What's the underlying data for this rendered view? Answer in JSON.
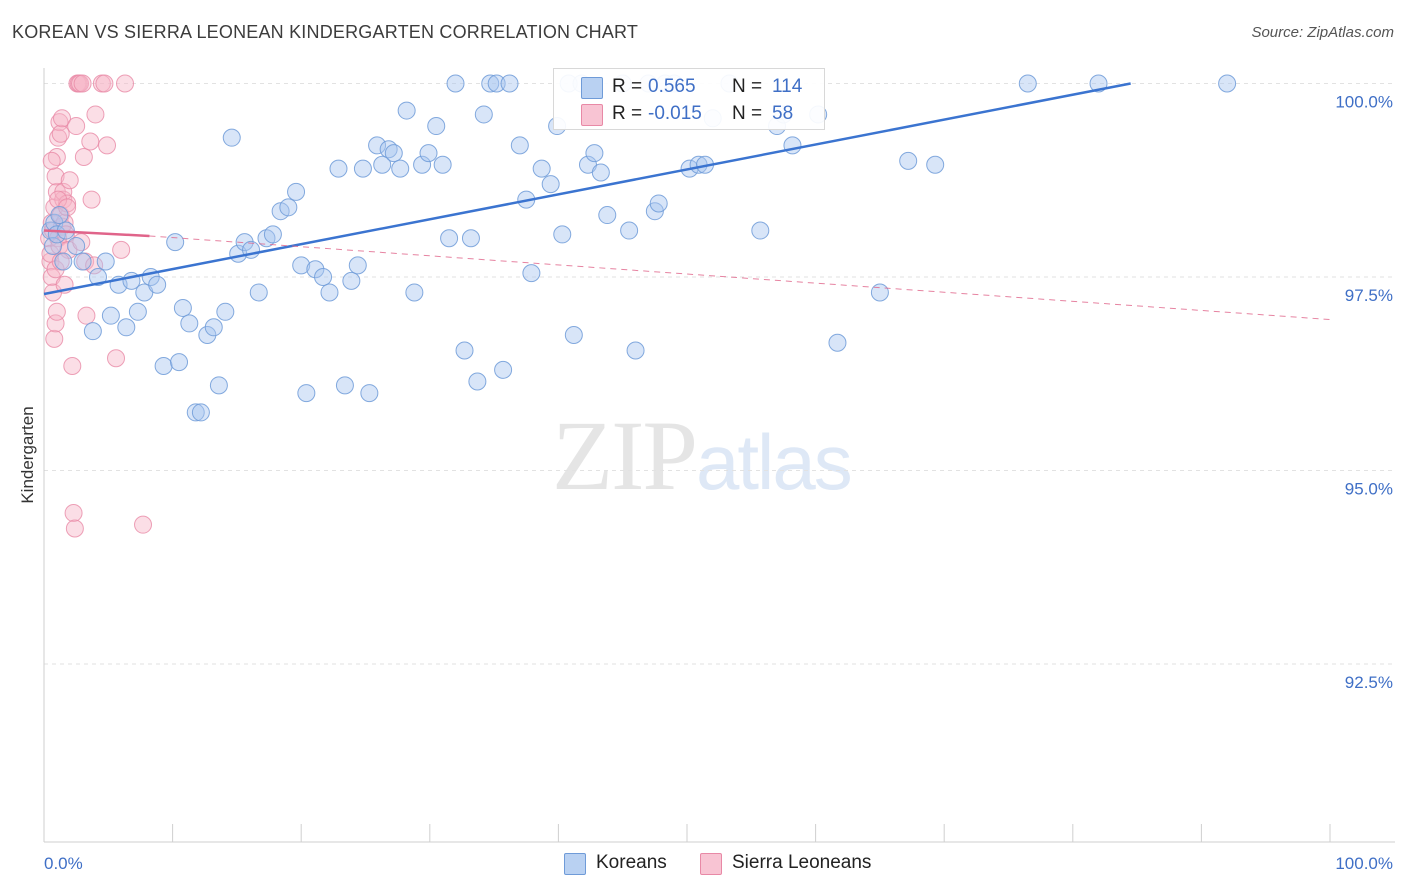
{
  "title": "KOREAN VS SIERRA LEONEAN KINDERGARTEN CORRELATION CHART",
  "source": "Source: ZipAtlas.com",
  "watermark": {
    "zip": "ZIP",
    "atlas": "atlas"
  },
  "legend": {
    "rows": [
      {
        "r_label": "R =",
        "r_value": "0.565",
        "n_label": "N =",
        "n_value": "114"
      },
      {
        "r_label": "R =",
        "r_value": "-0.015",
        "n_label": "N =",
        "n_value": "58"
      }
    ]
  },
  "colors": {
    "korean_fill": "#a9c6ef",
    "korean_stroke": "#6f9bd8",
    "korean_line": "#3b74d0",
    "sierra_fill": "#f6b6c8",
    "sierra_stroke": "#e889a6",
    "sierra_line": "#e0648a",
    "grid": "#e2e2e2",
    "tick_text": "#3f6fc6"
  },
  "chart_data": {
    "type": "scatter",
    "title": "KOREAN VS SIERRA LEONEAN KINDERGARTEN CORRELATION CHART",
    "xlabel": "",
    "ylabel": "Kindergarten",
    "xlim": [
      0,
      100
    ],
    "ylim": [
      90.2,
      100.2
    ],
    "x_tick_labels": [
      "0.0%",
      "100.0%"
    ],
    "y_ticks": [
      {
        "value": 100.0,
        "label": "100.0%"
      },
      {
        "value": 97.5,
        "label": "97.5%"
      },
      {
        "value": 95.0,
        "label": "95.0%"
      },
      {
        "value": 92.5,
        "label": "92.5%"
      }
    ],
    "series": [
      {
        "name": "Koreans",
        "r": 0.565,
        "n": 114,
        "trend": {
          "x": [
            0,
            84.5
          ],
          "y": [
            97.28,
            100.0
          ],
          "style": "solid"
        },
        "points": [
          [
            0.5,
            98.1
          ],
          [
            0.7,
            97.9
          ],
          [
            0.8,
            98.2
          ],
          [
            1.0,
            98.05
          ],
          [
            1.2,
            98.3
          ],
          [
            1.5,
            97.7
          ],
          [
            1.7,
            98.1
          ],
          [
            2.5,
            97.9
          ],
          [
            3.0,
            97.7
          ],
          [
            3.8,
            96.8
          ],
          [
            4.2,
            97.5
          ],
          [
            4.8,
            97.7
          ],
          [
            5.2,
            97.0
          ],
          [
            5.8,
            97.4
          ],
          [
            6.4,
            96.85
          ],
          [
            6.8,
            97.45
          ],
          [
            7.3,
            97.05
          ],
          [
            7.8,
            97.3
          ],
          [
            8.3,
            97.5
          ],
          [
            8.8,
            97.4
          ],
          [
            9.3,
            96.35
          ],
          [
            10.2,
            97.95
          ],
          [
            10.5,
            96.4
          ],
          [
            10.8,
            97.1
          ],
          [
            11.3,
            96.9
          ],
          [
            11.8,
            95.75
          ],
          [
            12.2,
            95.75
          ],
          [
            12.7,
            96.75
          ],
          [
            13.2,
            96.85
          ],
          [
            13.6,
            96.1
          ],
          [
            14.1,
            97.05
          ],
          [
            14.6,
            99.3
          ],
          [
            15.1,
            97.8
          ],
          [
            15.6,
            97.95
          ],
          [
            16.1,
            97.85
          ],
          [
            16.7,
            97.3
          ],
          [
            17.3,
            98.0
          ],
          [
            17.8,
            98.05
          ],
          [
            18.4,
            98.35
          ],
          [
            19.0,
            98.4
          ],
          [
            19.6,
            98.6
          ],
          [
            20.0,
            97.65
          ],
          [
            20.4,
            96.0
          ],
          [
            21.1,
            97.6
          ],
          [
            21.7,
            97.5
          ],
          [
            22.2,
            97.3
          ],
          [
            22.9,
            98.9
          ],
          [
            23.4,
            96.1
          ],
          [
            23.9,
            97.45
          ],
          [
            24.4,
            97.65
          ],
          [
            24.8,
            98.9
          ],
          [
            25.3,
            96.0
          ],
          [
            25.9,
            99.2
          ],
          [
            26.3,
            98.95
          ],
          [
            26.8,
            99.15
          ],
          [
            27.2,
            99.1
          ],
          [
            27.7,
            98.9
          ],
          [
            28.2,
            99.65
          ],
          [
            28.8,
            97.3
          ],
          [
            29.4,
            98.95
          ],
          [
            29.9,
            99.1
          ],
          [
            30.5,
            99.45
          ],
          [
            31.0,
            98.95
          ],
          [
            31.5,
            98.0
          ],
          [
            32.0,
            100.0
          ],
          [
            32.7,
            96.55
          ],
          [
            33.2,
            98.0
          ],
          [
            33.7,
            96.15
          ],
          [
            34.2,
            99.6
          ],
          [
            34.7,
            100.0
          ],
          [
            35.2,
            100.0
          ],
          [
            35.7,
            96.3
          ],
          [
            36.2,
            100.0
          ],
          [
            37.0,
            99.2
          ],
          [
            37.5,
            98.5
          ],
          [
            37.9,
            97.55
          ],
          [
            38.7,
            98.9
          ],
          [
            39.4,
            98.7
          ],
          [
            39.9,
            99.45
          ],
          [
            40.3,
            98.05
          ],
          [
            40.8,
            100.0
          ],
          [
            41.2,
            96.75
          ],
          [
            41.8,
            100.0
          ],
          [
            42.3,
            98.95
          ],
          [
            42.8,
            99.1
          ],
          [
            43.3,
            98.85
          ],
          [
            43.8,
            98.3
          ],
          [
            45.0,
            100.0
          ],
          [
            45.5,
            98.1
          ],
          [
            46.0,
            96.55
          ],
          [
            47.0,
            100.0
          ],
          [
            47.5,
            98.35
          ],
          [
            47.8,
            98.45
          ],
          [
            48.3,
            100.0
          ],
          [
            49.0,
            100.0
          ],
          [
            50.2,
            98.9
          ],
          [
            50.9,
            98.95
          ],
          [
            51.4,
            98.95
          ],
          [
            52.0,
            99.55
          ],
          [
            53.3,
            100.0
          ],
          [
            55.7,
            98.1
          ],
          [
            57.0,
            99.45
          ],
          [
            57.5,
            99.6
          ],
          [
            58.2,
            99.2
          ],
          [
            60.2,
            99.6
          ],
          [
            61.7,
            96.65
          ],
          [
            65.0,
            97.3
          ],
          [
            67.2,
            99.0
          ],
          [
            69.3,
            98.95
          ],
          [
            76.5,
            100.0
          ],
          [
            82.0,
            100.0
          ],
          [
            92.0,
            100.0
          ]
        ]
      },
      {
        "name": "Sierra Leoneans",
        "r": -0.015,
        "n": 58,
        "trend": {
          "x": [
            0,
            8.2
          ],
          "y": [
            98.1,
            98.03
          ],
          "x_dashed_end": 100,
          "y_dashed_end": 96.95,
          "style": "solid+dashed"
        },
        "points": [
          [
            0.4,
            98.0
          ],
          [
            0.5,
            97.7
          ],
          [
            0.6,
            97.5
          ],
          [
            0.7,
            97.3
          ],
          [
            0.8,
            96.7
          ],
          [
            0.9,
            96.9
          ],
          [
            1.0,
            97.05
          ],
          [
            0.5,
            97.8
          ],
          [
            0.6,
            98.2
          ],
          [
            0.7,
            98.1
          ],
          [
            0.8,
            98.4
          ],
          [
            0.9,
            97.6
          ],
          [
            1.0,
            98.6
          ],
          [
            1.1,
            98.0
          ],
          [
            1.2,
            97.9
          ],
          [
            1.3,
            98.3
          ],
          [
            1.4,
            98.15
          ],
          [
            1.5,
            98.5
          ],
          [
            1.6,
            97.4
          ],
          [
            0.9,
            98.8
          ],
          [
            1.0,
            99.05
          ],
          [
            1.1,
            99.3
          ],
          [
            1.2,
            99.5
          ],
          [
            1.3,
            99.35
          ],
          [
            1.4,
            99.55
          ],
          [
            1.5,
            98.6
          ],
          [
            1.6,
            98.2
          ],
          [
            1.7,
            98.05
          ],
          [
            1.8,
            98.45
          ],
          [
            1.9,
            97.85
          ],
          [
            2.0,
            98.75
          ],
          [
            2.2,
            96.35
          ],
          [
            2.3,
            94.45
          ],
          [
            2.4,
            94.25
          ],
          [
            2.5,
            99.45
          ],
          [
            2.6,
            100.0
          ],
          [
            2.7,
            100.0
          ],
          [
            2.8,
            100.0
          ],
          [
            3.0,
            100.0
          ],
          [
            3.1,
            99.05
          ],
          [
            3.2,
            97.7
          ],
          [
            3.3,
            97.0
          ],
          [
            3.6,
            99.25
          ],
          [
            3.9,
            97.65
          ],
          [
            3.7,
            98.5
          ],
          [
            4.0,
            99.6
          ],
          [
            4.5,
            100.0
          ],
          [
            4.7,
            100.0
          ],
          [
            4.9,
            99.2
          ],
          [
            5.6,
            96.45
          ],
          [
            6.0,
            97.85
          ],
          [
            6.3,
            100.0
          ],
          [
            7.7,
            94.3
          ],
          [
            1.3,
            97.7
          ],
          [
            0.6,
            99.0
          ],
          [
            1.1,
            98.5
          ],
          [
            2.9,
            97.95
          ],
          [
            1.8,
            98.4
          ]
        ]
      }
    ]
  },
  "bottom_legend": [
    {
      "label": "Koreans"
    },
    {
      "label": "Sierra Leoneans"
    }
  ]
}
